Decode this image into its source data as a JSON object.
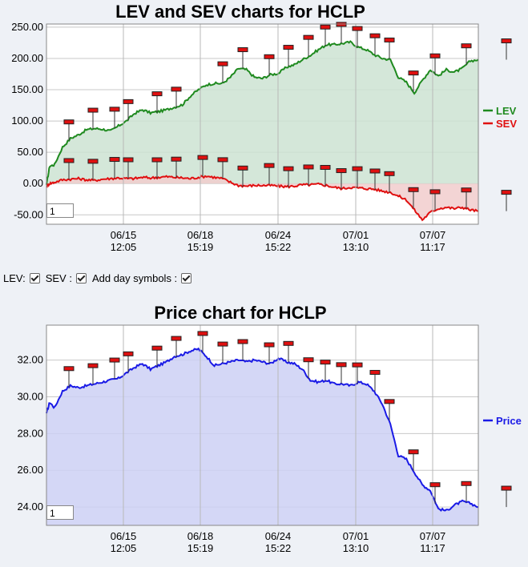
{
  "chart_data": [
    {
      "type": "area",
      "title": "LEV and SEV charts for HCLP",
      "yticks": [
        "250.00",
        "200.00",
        "150.00",
        "100.00",
        "50.00",
        "0.00",
        "-50.00"
      ],
      "ylim": [
        -65,
        255
      ],
      "xtick_dates": [
        "06/15",
        "06/18",
        "06/24",
        "07/01",
        "07/07"
      ],
      "xtick_times": [
        "12:05",
        "15:19",
        "15:22",
        "13:10",
        "11:17"
      ],
      "legend_placement": "right",
      "grid": true,
      "x": [
        0,
        4,
        10,
        20,
        30,
        40,
        50,
        60,
        70,
        80,
        90,
        100,
        110,
        120,
        130,
        140,
        150,
        160,
        170,
        180,
        190,
        200,
        210,
        220,
        230,
        240,
        250,
        260,
        270,
        280,
        290,
        300,
        310,
        320,
        330,
        340,
        350,
        360,
        370,
        380,
        390,
        400,
        410,
        420,
        430,
        440,
        450,
        460,
        470,
        480,
        490,
        500,
        510,
        520,
        530,
        540
      ],
      "series": [
        {
          "name": "LEV",
          "color": "#1f8a1f",
          "fill": "#cde3d2",
          "values": [
            -2,
            28,
            30,
            58,
            72,
            78,
            86,
            88,
            87,
            84,
            92,
            100,
            112,
            118,
            113,
            115,
            118,
            122,
            126,
            140,
            150,
            158,
            160,
            160,
            170,
            184,
            182,
            170,
            168,
            174,
            176,
            186,
            190,
            198,
            205,
            214,
            222,
            222,
            224,
            226,
            218,
            214,
            206,
            200,
            198,
            170,
            162,
            145,
            165,
            182,
            172,
            182,
            178,
            184,
            196,
            198
          ]
        },
        {
          "name": "SEV",
          "color": "#e01010",
          "fill": "#f1cccc",
          "values": [
            -4,
            0,
            2,
            6,
            7,
            8,
            6,
            5,
            7,
            8,
            9,
            8,
            8,
            10,
            9,
            10,
            11,
            10,
            9,
            8,
            10,
            12,
            10,
            8,
            2,
            -3,
            -4,
            -3,
            -3,
            -3,
            -4,
            -5,
            -4,
            -2,
            -2,
            -1,
            -3,
            -6,
            -8,
            -6,
            -7,
            -8,
            -9,
            -12,
            -14,
            -20,
            -26,
            -42,
            -58,
            -46,
            -40,
            -38,
            -40,
            -38,
            -42,
            -44
          ]
        }
      ],
      "day_markers": {
        "LEV_x": [
          28,
          58,
          85,
          102,
          138,
          162,
          220,
          245,
          278,
          302,
          327,
          348,
          368,
          388,
          410,
          428,
          458,
          485,
          524,
          574
        ],
        "SEV_x": [
          28,
          58,
          85,
          102,
          138,
          162,
          195,
          220,
          245,
          278,
          302,
          327,
          348,
          368,
          388,
          410,
          428,
          458,
          485,
          524,
          574
        ]
      }
    },
    {
      "type": "area",
      "title": "Price chart for HCLP",
      "yticks": [
        "32.00",
        "30.00",
        "28.00",
        "26.00",
        "24.00"
      ],
      "ylim": [
        23,
        33.9
      ],
      "xtick_dates": [
        "06/15",
        "06/18",
        "06/24",
        "07/01",
        "07/07"
      ],
      "xtick_times": [
        "12:05",
        "15:19",
        "15:22",
        "13:10",
        "11:17"
      ],
      "legend_placement": "right",
      "grid": true,
      "x": [
        0,
        4,
        10,
        20,
        30,
        40,
        50,
        60,
        70,
        80,
        90,
        100,
        110,
        120,
        130,
        140,
        150,
        160,
        170,
        180,
        190,
        200,
        210,
        220,
        230,
        240,
        250,
        260,
        270,
        280,
        290,
        300,
        310,
        320,
        330,
        340,
        350,
        360,
        370,
        380,
        390,
        400,
        410,
        420,
        430,
        440,
        450,
        460,
        470,
        480,
        490,
        500,
        510,
        520,
        530,
        540
      ],
      "series": [
        {
          "name": "Price",
          "color": "#1a1ae6",
          "fill": "#cdd0f5",
          "values": [
            29.1,
            29.7,
            29.4,
            30.3,
            30.6,
            30.5,
            30.6,
            30.7,
            30.8,
            30.9,
            31.0,
            31.3,
            31.6,
            31.8,
            31.5,
            31.7,
            31.9,
            32.2,
            32.3,
            32.5,
            32.6,
            32.2,
            31.7,
            31.8,
            31.9,
            32.0,
            31.9,
            32.0,
            31.9,
            31.8,
            32.1,
            31.9,
            31.8,
            31.5,
            30.9,
            30.8,
            30.9,
            30.7,
            30.7,
            30.6,
            30.8,
            30.7,
            30.3,
            29.6,
            28.5,
            26.8,
            26.6,
            25.9,
            25.2,
            24.9,
            23.9,
            23.8,
            24.1,
            24.3,
            24.2,
            24.0
          ]
        }
      ],
      "day_markers": {
        "Price_x": [
          28,
          58,
          85,
          102,
          138,
          162,
          195,
          220,
          245,
          278,
          302,
          327,
          348,
          368,
          388,
          410,
          428,
          458,
          485,
          524,
          574
        ]
      }
    }
  ],
  "controls": {
    "lev_label": "LEV:",
    "sev_label": "SEV :",
    "daysym_label": "Add day symbols :"
  },
  "zoom_value_1": "1",
  "zoom_value_2": "1"
}
